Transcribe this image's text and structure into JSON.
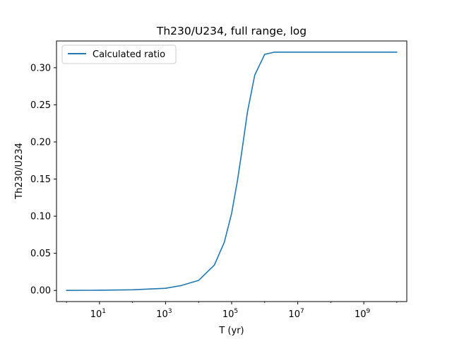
{
  "chart_data": {
    "type": "line",
    "title": "Th230/U234, full range, log",
    "xlabel": "T (yr)",
    "ylabel": "Th230/U234",
    "xscale": "log",
    "xlim": [
      0.5,
      20000000000
    ],
    "ylim": [
      -0.015,
      0.336
    ],
    "grid": false,
    "legend_position": "top-left",
    "xticks": [
      {
        "base": "10",
        "exp": "1",
        "value": 10
      },
      {
        "base": "10",
        "exp": "3",
        "value": 1000
      },
      {
        "base": "10",
        "exp": "5",
        "value": 100000
      },
      {
        "base": "10",
        "exp": "7",
        "value": 10000000
      },
      {
        "base": "10",
        "exp": "9",
        "value": 1000000000
      }
    ],
    "yticks": [
      {
        "label": "0.00",
        "value": 0.0
      },
      {
        "label": "0.05",
        "value": 0.05
      },
      {
        "label": "0.10",
        "value": 0.1
      },
      {
        "label": "0.15",
        "value": 0.15
      },
      {
        "label": "0.20",
        "value": 0.2
      },
      {
        "label": "0.25",
        "value": 0.25
      },
      {
        "label": "0.30",
        "value": 0.3
      }
    ],
    "series": [
      {
        "name": "Calculated ratio",
        "color": "#1f77b4",
        "x": [
          1,
          10,
          100,
          1000,
          3000,
          10000,
          30000,
          60000,
          100000,
          150000,
          200000,
          300000,
          500000,
          1000000,
          2000000,
          10000000,
          100000000,
          1000000000,
          10000000000
        ],
        "y": [
          0.0,
          0.0003,
          0.0009,
          0.0029,
          0.0066,
          0.0135,
          0.0342,
          0.065,
          0.104,
          0.148,
          0.185,
          0.24,
          0.29,
          0.318,
          0.321,
          0.321,
          0.321,
          0.321,
          0.321
        ]
      }
    ]
  }
}
